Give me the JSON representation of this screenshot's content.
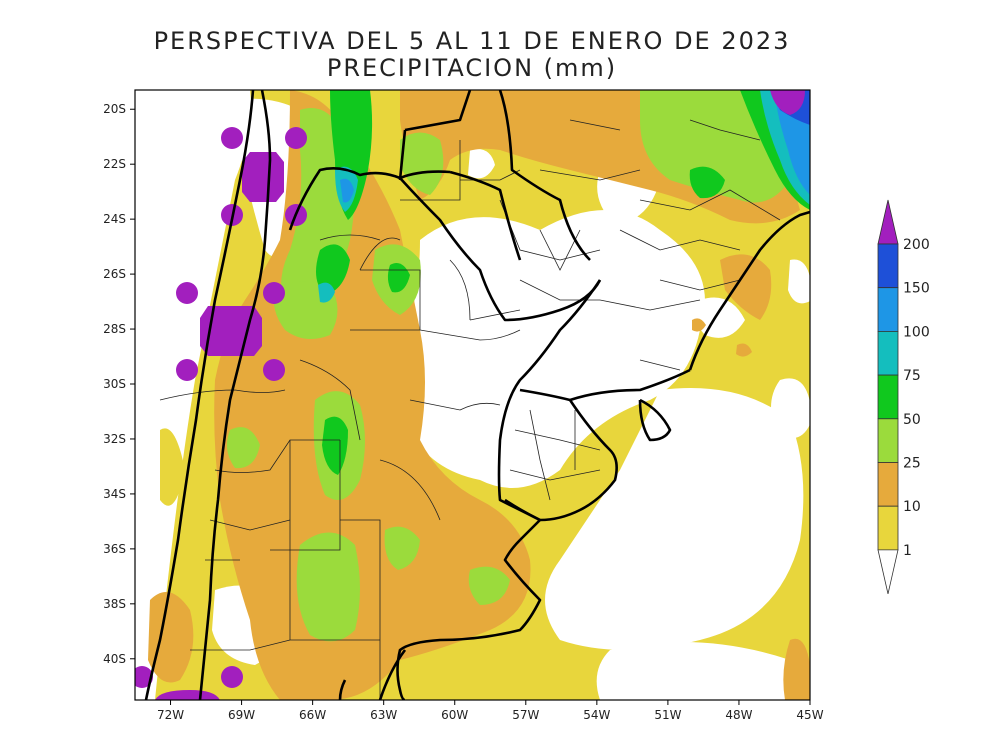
{
  "title": {
    "line1": "PERSPECTIVA DEL 5 AL 11 DE ENERO DE 2023",
    "line2": "PRECIPITACION (mm)"
  },
  "map": {
    "lon_range": [
      -73.5,
      -45
    ],
    "lat_range": [
      -41.5,
      -19.3
    ],
    "lat_ticks": [
      {
        "value": -20,
        "label": "20S"
      },
      {
        "value": -22,
        "label": "22S"
      },
      {
        "value": -24,
        "label": "24S"
      },
      {
        "value": -26,
        "label": "26S"
      },
      {
        "value": -28,
        "label": "28S"
      },
      {
        "value": -30,
        "label": "30S"
      },
      {
        "value": -32,
        "label": "32S"
      },
      {
        "value": -34,
        "label": "34S"
      },
      {
        "value": -36,
        "label": "36S"
      },
      {
        "value": -38,
        "label": "38S"
      },
      {
        "value": -40,
        "label": "40S"
      }
    ],
    "lon_ticks": [
      {
        "value": -72,
        "label": "72W"
      },
      {
        "value": -69,
        "label": "69W"
      },
      {
        "value": -66,
        "label": "66W"
      },
      {
        "value": -63,
        "label": "63W"
      },
      {
        "value": -60,
        "label": "60W"
      },
      {
        "value": -57,
        "label": "57W"
      },
      {
        "value": -54,
        "label": "54W"
      },
      {
        "value": -51,
        "label": "51W"
      },
      {
        "value": -48,
        "label": "48W"
      },
      {
        "value": -45,
        "label": "45W"
      }
    ]
  },
  "legend": {
    "levels": [
      {
        "label": "200",
        "color": "#a21fbe"
      },
      {
        "label": "150",
        "color": "#1e50d8"
      },
      {
        "label": "100",
        "color": "#1e96e6"
      },
      {
        "label": "75",
        "color": "#14bebe"
      },
      {
        "label": "50",
        "color": "#10c81e"
      },
      {
        "label": "25",
        "color": "#9bdb3c"
      },
      {
        "label": "10",
        "color": "#e6aa3c"
      },
      {
        "label": "1",
        "color": "#e8d63c"
      }
    ],
    "over_color": "#a21fbe",
    "under_color": "#ffffff"
  },
  "colors": {
    "white": "#ffffff",
    "yellow": "#e8d63c",
    "orange": "#e6aa3c",
    "lightgreen": "#9bdb3c",
    "green": "#10c81e",
    "cyan": "#14bebe",
    "lightblue": "#1e96e6",
    "blue": "#1e50d8",
    "purple": "#a21fbe"
  }
}
